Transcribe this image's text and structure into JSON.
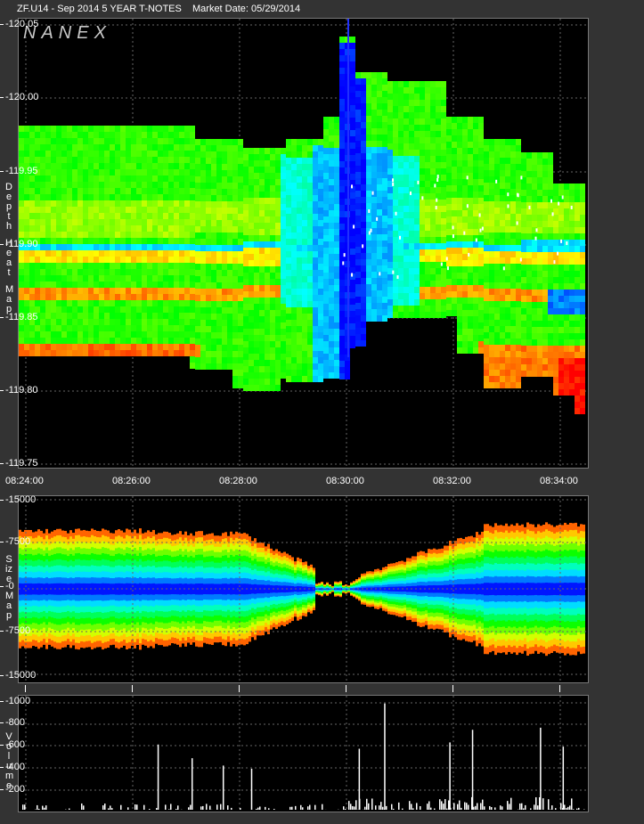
{
  "header": {
    "symbol": "ZF.U14 - Sep 2014 5 YEAR T-NOTES",
    "market_date": "Market Date: 05/29/2014"
  },
  "logo": "NANEX",
  "side_labels": {
    "depth": "Depth",
    "heat": "Heat",
    "map": "Map",
    "size": "Size",
    "size_map": "Map",
    "volume": "Volume"
  },
  "chart_data": [
    {
      "type": "heatmap",
      "name": "depth-heat-map",
      "y_ticks": [
        "-120.05",
        "-120.00",
        "-119.95",
        "-119.90",
        "-119.85",
        "-119.80",
        "-119.75"
      ],
      "x_ticks": [
        "08:24:00",
        "08:26:00",
        "08:28:00",
        "08:30:00",
        "08:32:00",
        "08:34:00"
      ],
      "ylim": [
        119.75,
        120.05
      ]
    },
    {
      "type": "area",
      "name": "size-map",
      "y_ticks": [
        "-15000",
        "-7500",
        "-0",
        "-7500",
        "-15000"
      ],
      "ylim": [
        -15000,
        15000
      ]
    },
    {
      "type": "bar",
      "name": "volume",
      "y_ticks": [
        "-1000",
        "-800",
        "-600",
        "-400",
        "-200"
      ],
      "ylim": [
        0,
        1050
      ],
      "spikes": [
        {
          "t": 0.245,
          "v": 620
        },
        {
          "t": 0.305,
          "v": 490
        },
        {
          "t": 0.36,
          "v": 420
        },
        {
          "t": 0.41,
          "v": 390
        },
        {
          "t": 0.6,
          "v": 580
        },
        {
          "t": 0.645,
          "v": 1010
        },
        {
          "t": 0.76,
          "v": 640
        },
        {
          "t": 0.8,
          "v": 760
        },
        {
          "t": 0.92,
          "v": 780
        },
        {
          "t": 0.96,
          "v": 600
        }
      ]
    }
  ]
}
